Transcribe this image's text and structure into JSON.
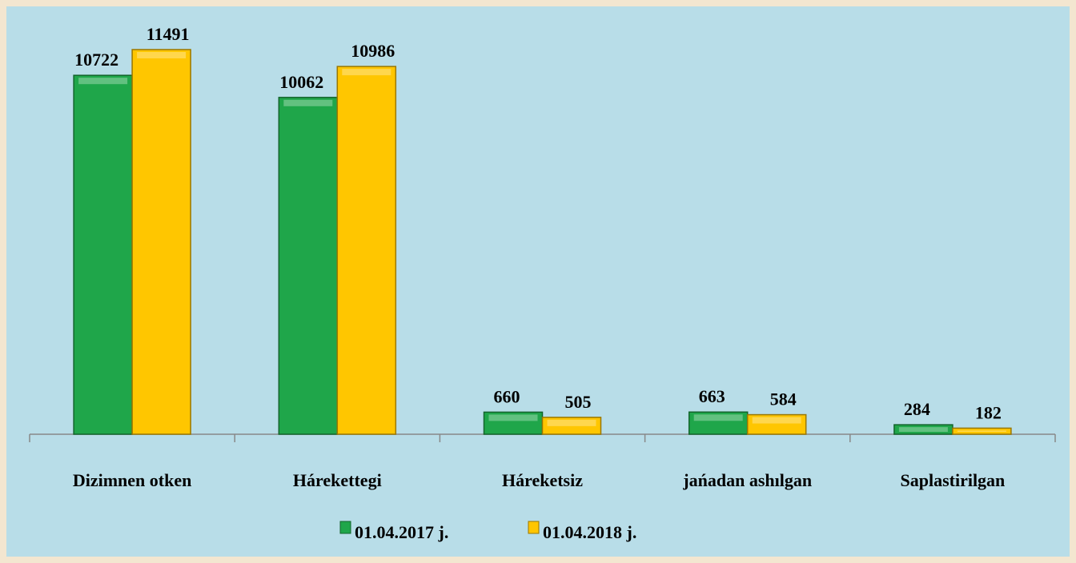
{
  "chart_data": {
    "type": "bar",
    "categories": [
      "Dizimnen otken",
      "Hárekettegi",
      "Háreketsiz",
      "jańadan ashılgan",
      "Saplastirilgan"
    ],
    "series": [
      {
        "name": "01.04.2017 j.",
        "color": "#1fa64a",
        "values": [
          10722,
          10062,
          660,
          663,
          284
        ]
      },
      {
        "name": "01.04.2018 j.",
        "color": "#ffc600",
        "values": [
          11491,
          10986,
          505,
          584,
          182
        ]
      }
    ]
  }
}
